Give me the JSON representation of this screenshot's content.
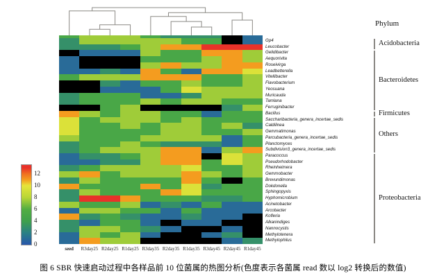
{
  "caption": "图 6  SBR 快速启动过程中各样品前 10 位菌属的热图分析(色度表示各菌属 read 数以 log2 转换后的数值)",
  "phylum_header": "Phylum",
  "legend": {
    "ticks": [
      12,
      10,
      8,
      6,
      4,
      2,
      0
    ],
    "min": 0,
    "max": 13.5
  },
  "phylum_groups": [
    {
      "label": "Acidobacteria",
      "start": 0,
      "end": 1
    },
    {
      "label": "Bacteroidetes",
      "start": 2,
      "end": 11
    },
    {
      "label": "Firmicutes",
      "start": 12,
      "end": 12
    },
    {
      "label": "Others",
      "start": 13,
      "end": 18
    },
    {
      "label": "Proteobacteria",
      "start": 19,
      "end": 33
    }
  ],
  "chart_data": {
    "type": "heatmap",
    "title": "SBR 快速启动过程中各样品前 10 位菌属的热图分析",
    "value_meaning": "log2-transformed read counts",
    "columns": [
      "seed",
      "R3day25",
      "R2day25",
      "R1day25",
      "R3day35",
      "R2day35",
      "R1day35",
      "R3day45",
      "R2day45",
      "R1day45"
    ],
    "rows": [
      "Gp4",
      "Leucobacter",
      "Gelidibacter",
      "Aequorivita",
      "Roseivirga",
      "Leadbetterella",
      "Vitellibacter",
      "Flavobacterium",
      "Yeosuana",
      "Muricauda",
      "Tamlana",
      "Ferruginibacter",
      "Bacillus",
      "Saccharibacteria_genera_incertae_sedis",
      "Caldilinea",
      "Gemmatimonas",
      "Parcubacteria_genera_incertae_sedis",
      "Planctomyces",
      "Subdivision3_genera_incertae_sedis",
      "Paracoccus",
      "Pseudorhodobacter",
      "Rheinheimera",
      "Gemmobacter",
      "Brevundimonas",
      "Dokdonella",
      "Sphingopyxis",
      "Hyphomicrobium",
      "Acinetobacter",
      "Arcobacter",
      "Kofleria",
      "Alkanindiges",
      "Nannocystis",
      "Methylotenera",
      "Methylophilus"
    ],
    "values": [
      [
        3,
        7.5,
        7.5,
        7.5,
        7.5,
        7.5,
        5,
        5,
        null,
        1
      ],
      [
        3,
        3,
        3,
        5,
        7.5,
        11,
        11,
        13,
        13,
        13
      ],
      [
        null,
        1,
        1,
        1,
        7.5,
        5,
        5,
        11,
        11,
        7.5
      ],
      [
        1,
        null,
        null,
        null,
        5,
        5,
        5,
        7.5,
        11,
        7.5
      ],
      [
        1,
        null,
        null,
        null,
        7.5,
        11,
        7.5,
        7.5,
        11,
        11
      ],
      [
        1,
        1,
        3,
        1,
        11,
        5,
        1,
        11,
        11,
        9.5
      ],
      [
        5,
        7.5,
        7.5,
        7.5,
        11,
        11,
        11,
        5,
        5,
        7.5
      ],
      [
        null,
        null,
        3,
        1,
        5,
        5,
        7.5,
        5,
        5,
        7.5
      ],
      [
        null,
        null,
        1,
        1,
        1,
        5,
        9.5,
        7.5,
        7.5,
        7.5
      ],
      [
        3,
        5,
        5,
        5,
        1,
        1,
        3,
        7.5,
        7.5,
        7.5
      ],
      [
        3,
        5,
        5,
        5,
        7.5,
        5,
        7.5,
        7.5,
        5,
        5
      ],
      [
        null,
        null,
        5,
        7.5,
        null,
        null,
        null,
        null,
        3,
        7.5
      ],
      [
        11,
        7.5,
        5,
        7.5,
        7.5,
        5,
        5,
        1,
        5,
        5
      ],
      [
        9.5,
        5,
        7.5,
        7.5,
        7.5,
        5,
        7.5,
        5,
        5,
        5
      ],
      [
        9.5,
        5,
        5,
        7.5,
        5,
        7.5,
        7.5,
        5,
        7.5,
        3
      ],
      [
        9.5,
        5,
        5,
        5,
        5,
        7.5,
        7.5,
        5,
        5,
        7.5
      ],
      [
        7.5,
        5,
        5,
        5,
        7.5,
        7.5,
        7.5,
        7.5,
        1,
        5
      ],
      [
        3,
        5,
        5,
        7.5,
        5,
        3,
        3,
        3,
        1,
        5
      ],
      [
        3,
        5,
        7.5,
        7.5,
        7.5,
        11,
        11,
        1,
        7.5,
        11
      ],
      [
        1,
        3,
        3,
        5,
        7.5,
        11,
        11,
        null,
        9.5,
        7.5
      ],
      [
        1,
        1,
        3,
        3,
        7.5,
        11,
        11,
        5,
        9.5,
        7.5
      ],
      [
        3,
        5,
        7.5,
        7.5,
        7.5,
        7.5,
        9.5,
        5,
        5,
        7.5
      ],
      [
        7.5,
        11,
        5,
        7.5,
        7.5,
        7.5,
        11,
        7.5,
        5,
        7.5
      ],
      [
        3,
        7.5,
        5,
        5,
        5,
        5,
        11,
        5,
        null,
        5
      ],
      [
        11,
        5,
        5,
        5,
        11,
        5,
        9.5,
        3,
        5,
        5
      ],
      [
        3,
        7.5,
        5,
        5,
        5,
        11,
        9.5,
        5,
        5,
        5
      ],
      [
        3,
        13,
        13,
        11,
        5,
        5,
        5,
        3,
        3,
        5
      ],
      [
        7.5,
        5,
        5,
        7.5,
        1,
        3,
        1,
        5,
        1,
        1
      ],
      [
        1,
        7.5,
        7.5,
        5,
        5,
        1,
        5,
        1,
        1,
        1
      ],
      [
        11,
        3,
        5,
        3,
        1,
        1,
        3,
        1,
        1,
        null
      ],
      [
        3,
        1,
        5,
        5,
        1,
        null,
        1,
        1,
        null,
        null
      ],
      [
        3,
        7.5,
        7.5,
        5,
        3,
        1,
        null,
        null,
        1,
        null
      ],
      [
        1,
        7.5,
        5,
        7.5,
        1,
        null,
        null,
        1,
        3,
        null
      ],
      [
        1,
        11,
        7.5,
        7.5,
        null,
        null,
        null,
        null,
        1,
        3
      ]
    ],
    "column_annotation": [
      5,
      7.5,
      7.5,
      7.5,
      5,
      3,
      3,
      3,
      null,
      1
    ],
    "colormap_stops": [
      [
        0,
        "#2756ab"
      ],
      [
        2,
        "#2a8085"
      ],
      [
        4,
        "#3fa04c"
      ],
      [
        6,
        "#52ad42"
      ],
      [
        8,
        "#b8d636"
      ],
      [
        10,
        "#e6e53a"
      ],
      [
        11,
        "#f49c1f"
      ],
      [
        12,
        "#f07020"
      ],
      [
        13,
        "#e93229"
      ]
    ],
    "null_color": "#000000",
    "dendrogram": {
      "leaves": 10,
      "merges": [
        {
          "a": 1,
          "b": 2,
          "h": 0.22
        },
        {
          "a": 10,
          "b": 3,
          "h": 0.38
        },
        {
          "a": 0,
          "b": 11,
          "h": 0.88
        },
        {
          "a": 6,
          "b": 7,
          "h": 0.3
        },
        {
          "a": 5,
          "b": 13,
          "h": 0.5
        },
        {
          "a": 4,
          "b": 14,
          "h": 0.68
        },
        {
          "a": 8,
          "b": 9,
          "h": 0.55
        },
        {
          "a": 15,
          "b": 16,
          "h": 0.82
        },
        {
          "a": 12,
          "b": 17,
          "h": 1.0
        }
      ]
    },
    "legend_ticks": [
      0,
      2,
      4,
      6,
      8,
      10,
      12
    ],
    "grid": false,
    "legend_position": "left"
  }
}
